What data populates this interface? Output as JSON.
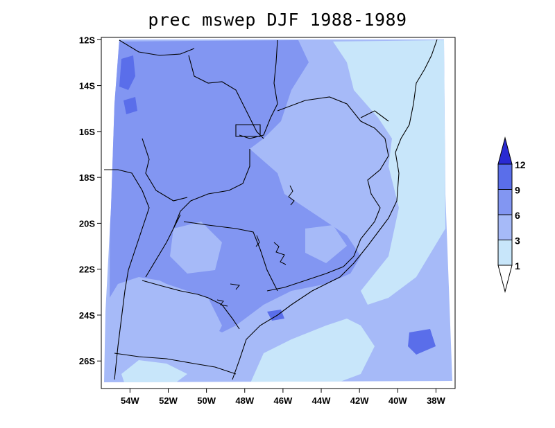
{
  "title": "prec mswep DJF 1988-1989",
  "map": {
    "variable": "prec",
    "dataset": "mswep",
    "season": "DJF",
    "period": "1988-1989",
    "lon_range": [
      -55.5,
      -37.0
    ],
    "lat_range": [
      -27.2,
      -11.9
    ],
    "lat_ticks": [
      {
        "value": -12,
        "label": "12S"
      },
      {
        "value": -14,
        "label": "14S"
      },
      {
        "value": -16,
        "label": "16S"
      },
      {
        "value": -18,
        "label": "18S"
      },
      {
        "value": -20,
        "label": "20S"
      },
      {
        "value": -22,
        "label": "22S"
      },
      {
        "value": -24,
        "label": "24S"
      },
      {
        "value": -26,
        "label": "26S"
      }
    ],
    "lon_ticks": [
      {
        "value": -54,
        "label": "54W"
      },
      {
        "value": -52,
        "label": "52W"
      },
      {
        "value": -50,
        "label": "50W"
      },
      {
        "value": -48,
        "label": "48W"
      },
      {
        "value": -46,
        "label": "46W"
      },
      {
        "value": -44,
        "label": "44W"
      },
      {
        "value": -42,
        "label": "42W"
      },
      {
        "value": -40,
        "label": "40W"
      },
      {
        "value": -38,
        "label": "38W"
      }
    ]
  },
  "colorbar": {
    "levels": [
      1,
      3,
      6,
      9,
      12
    ],
    "labels": [
      "1",
      "3",
      "6",
      "9",
      "12"
    ],
    "colors": [
      "#ffffff",
      "#c8e6fa",
      "#a6baf8",
      "#8296f2",
      "#5a6eea",
      "#2a2ad2"
    ]
  }
}
